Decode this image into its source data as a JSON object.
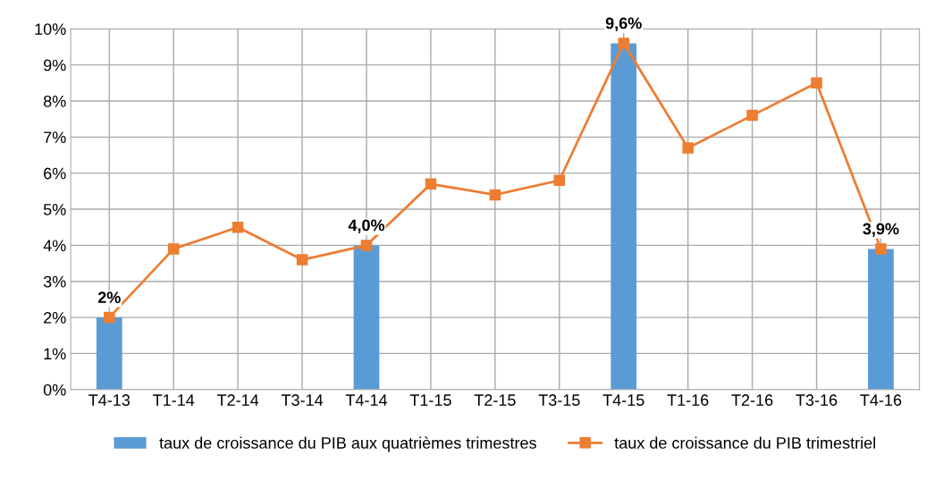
{
  "chart_data": {
    "type": "bar",
    "categories": [
      "T4-13",
      "T1-14",
      "T2-14",
      "T3-14",
      "T4-14",
      "T1-15",
      "T2-15",
      "T3-15",
      "T4-15",
      "T1-16",
      "T2-16",
      "T3-16",
      "T4-16"
    ],
    "series": [
      {
        "name": "taux de croissance du PIB aux quatrièmes trimestres",
        "color": "#5b9bd5",
        "values": [
          2,
          null,
          null,
          null,
          4.0,
          null,
          null,
          null,
          9.6,
          null,
          null,
          null,
          3.9
        ],
        "value_labels": [
          "2%",
          null,
          null,
          null,
          "4,0%",
          null,
          null,
          null,
          "9,6%",
          null,
          null,
          null,
          "3,9%"
        ]
      },
      {
        "name": "taux de croissance du PIB trimestriel",
        "type": "line",
        "color": "#ed7d31",
        "marker": "square",
        "values": [
          2,
          3.9,
          4.5,
          3.6,
          4.0,
          5.7,
          5.4,
          5.8,
          9.6,
          6.7,
          7.6,
          8.5,
          3.9
        ]
      }
    ],
    "ylim": [
      0,
      10
    ],
    "yticks": [
      {
        "value": 0,
        "label": "0%"
      },
      {
        "value": 1,
        "label": "1%"
      },
      {
        "value": 2,
        "label": "2%"
      },
      {
        "value": 3,
        "label": "3%"
      },
      {
        "value": 4,
        "label": "4%"
      },
      {
        "value": 5,
        "label": "5%"
      },
      {
        "value": 6,
        "label": "6%"
      },
      {
        "value": 7,
        "label": "7%"
      },
      {
        "value": 8,
        "label": "8%"
      },
      {
        "value": 9,
        "label": "9%"
      },
      {
        "value": 10,
        "label": "10%"
      }
    ],
    "grid": true,
    "legend": "bottom"
  }
}
